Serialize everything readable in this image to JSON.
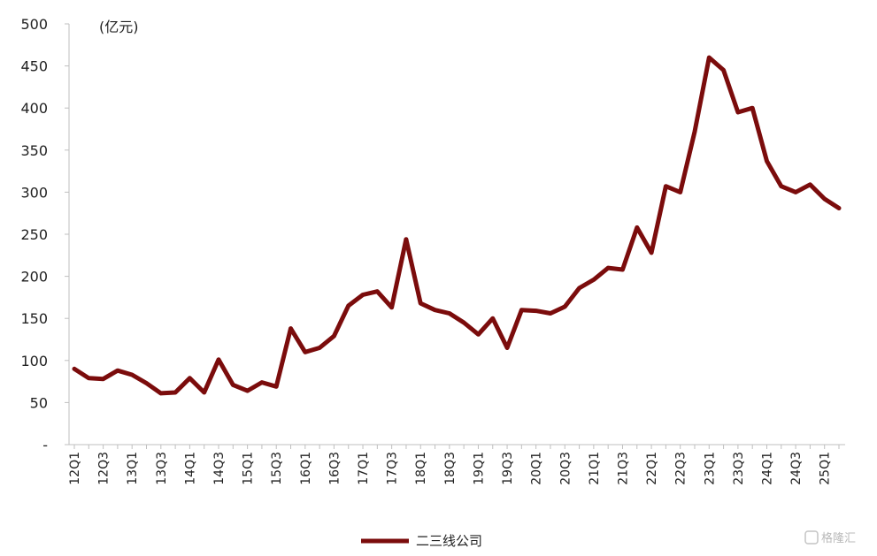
{
  "chart_data": {
    "type": "line",
    "title": "",
    "unit_label": "(亿元)",
    "xlabel": "",
    "ylabel": "",
    "ylim": [
      0,
      500
    ],
    "yticks": [
      "-",
      "50",
      "100",
      "150",
      "200",
      "250",
      "300",
      "350",
      "400",
      "450",
      "500"
    ],
    "grid": false,
    "legend_position": "bottom",
    "x": [
      "12Q1",
      "12Q2",
      "12Q3",
      "12Q4",
      "13Q1",
      "13Q2",
      "13Q3",
      "13Q4",
      "14Q1",
      "14Q2",
      "14Q3",
      "14Q4",
      "15Q1",
      "15Q2",
      "15Q3",
      "15Q4",
      "16Q1",
      "16Q2",
      "16Q3",
      "16Q4",
      "17Q1",
      "17Q2",
      "17Q3",
      "17Q4",
      "18Q1",
      "18Q2",
      "18Q3",
      "18Q4",
      "19Q1",
      "19Q2",
      "19Q3",
      "19Q4",
      "20Q1",
      "20Q2",
      "20Q3",
      "20Q4",
      "21Q1",
      "21Q2",
      "21Q3",
      "21Q4",
      "22Q1",
      "22Q2",
      "22Q3",
      "22Q4",
      "23Q1",
      "23Q2",
      "23Q3",
      "23Q4",
      "24Q1",
      "24Q2",
      "24Q3",
      "24Q4",
      "25Q1",
      "25Q2"
    ],
    "x_tick_labels": [
      "12Q1",
      "12Q3",
      "13Q1",
      "13Q3",
      "14Q1",
      "14Q3",
      "15Q1",
      "15Q3",
      "16Q1",
      "16Q3",
      "17Q1",
      "17Q3",
      "18Q1",
      "18Q3",
      "19Q1",
      "19Q3",
      "20Q1",
      "20Q3",
      "21Q1",
      "21Q3",
      "22Q1",
      "22Q3",
      "23Q1",
      "23Q3",
      "24Q1",
      "24Q3",
      "25Q1"
    ],
    "series": [
      {
        "name": "二三线公司",
        "color": "#7b0c0c",
        "values": [
          90,
          79,
          78,
          88,
          83,
          73,
          61,
          62,
          79,
          62,
          101,
          71,
          64,
          74,
          69,
          138,
          110,
          115,
          129,
          165,
          178,
          182,
          163,
          244,
          168,
          160,
          156,
          145,
          131,
          150,
          115,
          160,
          159,
          156,
          164,
          186,
          196,
          210,
          208,
          258,
          228,
          307,
          300,
          372,
          460,
          445,
          395,
          400,
          337,
          307,
          300,
          309,
          292,
          281
        ]
      }
    ]
  },
  "watermark": "格隆汇"
}
